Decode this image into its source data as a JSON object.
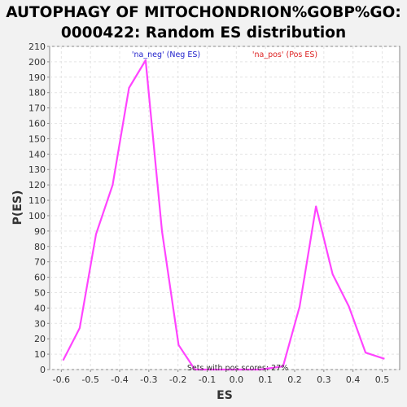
{
  "chart_data": {
    "type": "line",
    "title_lines": [
      "AUTOPHAGY OF MITOCHONDRION%GOBP%GO:",
      "0000422: Random ES distribution"
    ],
    "xlabel": "ES",
    "ylabel": "P(ES)",
    "xlim": [
      -0.64,
      0.56
    ],
    "ylim": [
      0,
      210
    ],
    "x_ticks": [
      "-0.6",
      "-0.5",
      "-0.4",
      "-0.3",
      "-0.2",
      "-0.1",
      "0.0",
      "0.1",
      "0.2",
      "0.3",
      "0.4",
      "0.5"
    ],
    "y_ticks": [
      "0",
      "10",
      "20",
      "30",
      "40",
      "50",
      "60",
      "70",
      "80",
      "90",
      "100",
      "110",
      "120",
      "130",
      "140",
      "150",
      "160",
      "170",
      "180",
      "190",
      "200",
      "210"
    ],
    "grid": true,
    "line_color": "#ff44ff",
    "series": [
      {
        "x": [
          -0.594,
          -0.537,
          -0.481,
          -0.424,
          -0.368,
          -0.311,
          -0.255,
          -0.198,
          -0.142,
          -0.086,
          0.0,
          0.08,
          0.16,
          0.217,
          0.273,
          0.33,
          0.386,
          0.443,
          0.508
        ],
        "values": [
          6,
          27,
          88,
          120,
          183,
          201,
          90,
          16,
          0,
          0,
          0,
          0,
          2,
          41,
          106,
          62,
          41,
          11,
          7
        ]
      }
    ],
    "legend": [
      {
        "label": "'na_neg' (Neg ES)",
        "color": "#2222cc"
      },
      {
        "label": "'na_pos' (Pos ES)",
        "color": "#dd2222"
      }
    ],
    "annotation": "Sets with pos scores: 27%"
  }
}
